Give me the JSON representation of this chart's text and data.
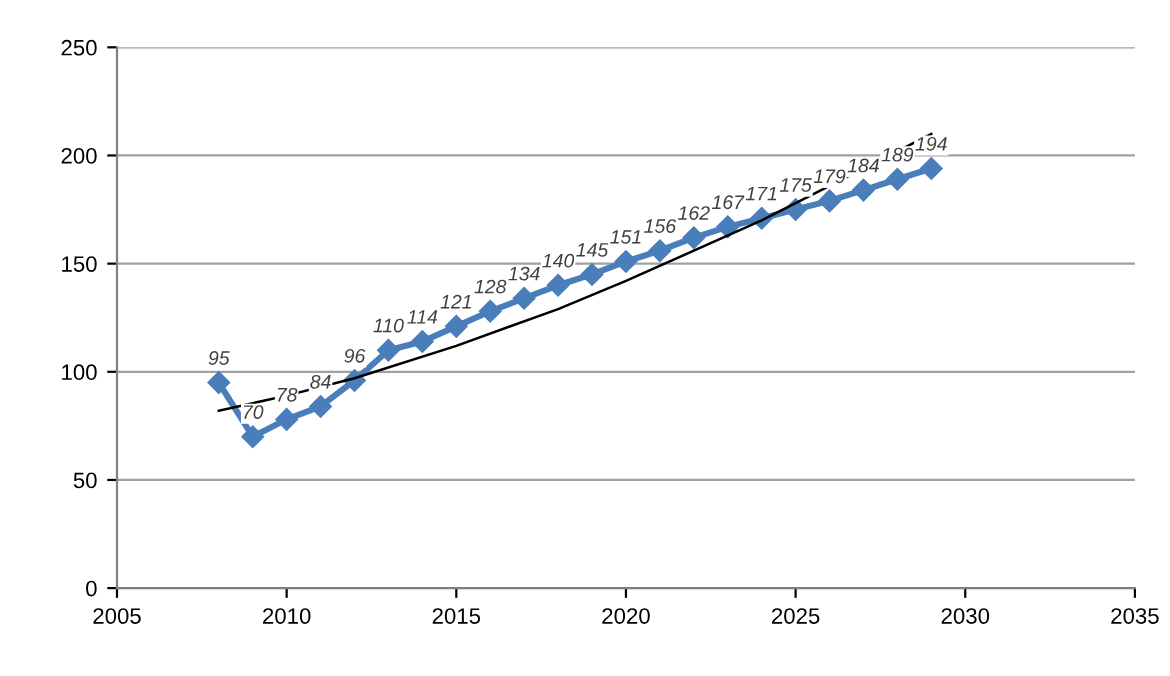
{
  "chart_data": {
    "type": "line",
    "xlim": [
      2005,
      2035
    ],
    "xticks": [
      2005,
      2010,
      2015,
      2020,
      2025,
      2030,
      2035
    ],
    "ylim": [
      0,
      250
    ],
    "yticks": [
      0,
      50,
      100,
      150,
      200,
      250
    ],
    "grid": "y",
    "legend": false,
    "series": [
      {
        "color": "#4a7ebb",
        "marker": "diamond",
        "line_style": "solid",
        "x": [
          2008,
          2009,
          2010,
          2011,
          2012,
          2013,
          2014,
          2015,
          2016,
          2017,
          2018,
          2019,
          2020,
          2021,
          2022,
          2023,
          2024,
          2025,
          2026,
          2027,
          2028,
          2029
        ],
        "values": [
          95,
          70,
          78,
          84,
          96,
          110,
          114,
          121,
          128,
          134,
          140,
          145,
          151,
          156,
          162,
          167,
          171,
          175,
          179,
          184,
          189,
          194
        ],
        "value_labels": [
          "95",
          "70",
          "78",
          "84",
          "96",
          "110",
          "114",
          "121",
          "128",
          "134",
          "140",
          "145",
          "151",
          "156",
          "162",
          "167",
          "171",
          "175",
          "179",
          "184",
          "189",
          "194"
        ]
      },
      {
        "color": "#000000",
        "marker": "none",
        "line_style": "solid",
        "x": [
          2008,
          2010,
          2012,
          2015,
          2018,
          2020,
          2022,
          2024,
          2026,
          2029
        ],
        "values": [
          82,
          89,
          97,
          112,
          129,
          142,
          156,
          170,
          186,
          210
        ]
      }
    ]
  }
}
